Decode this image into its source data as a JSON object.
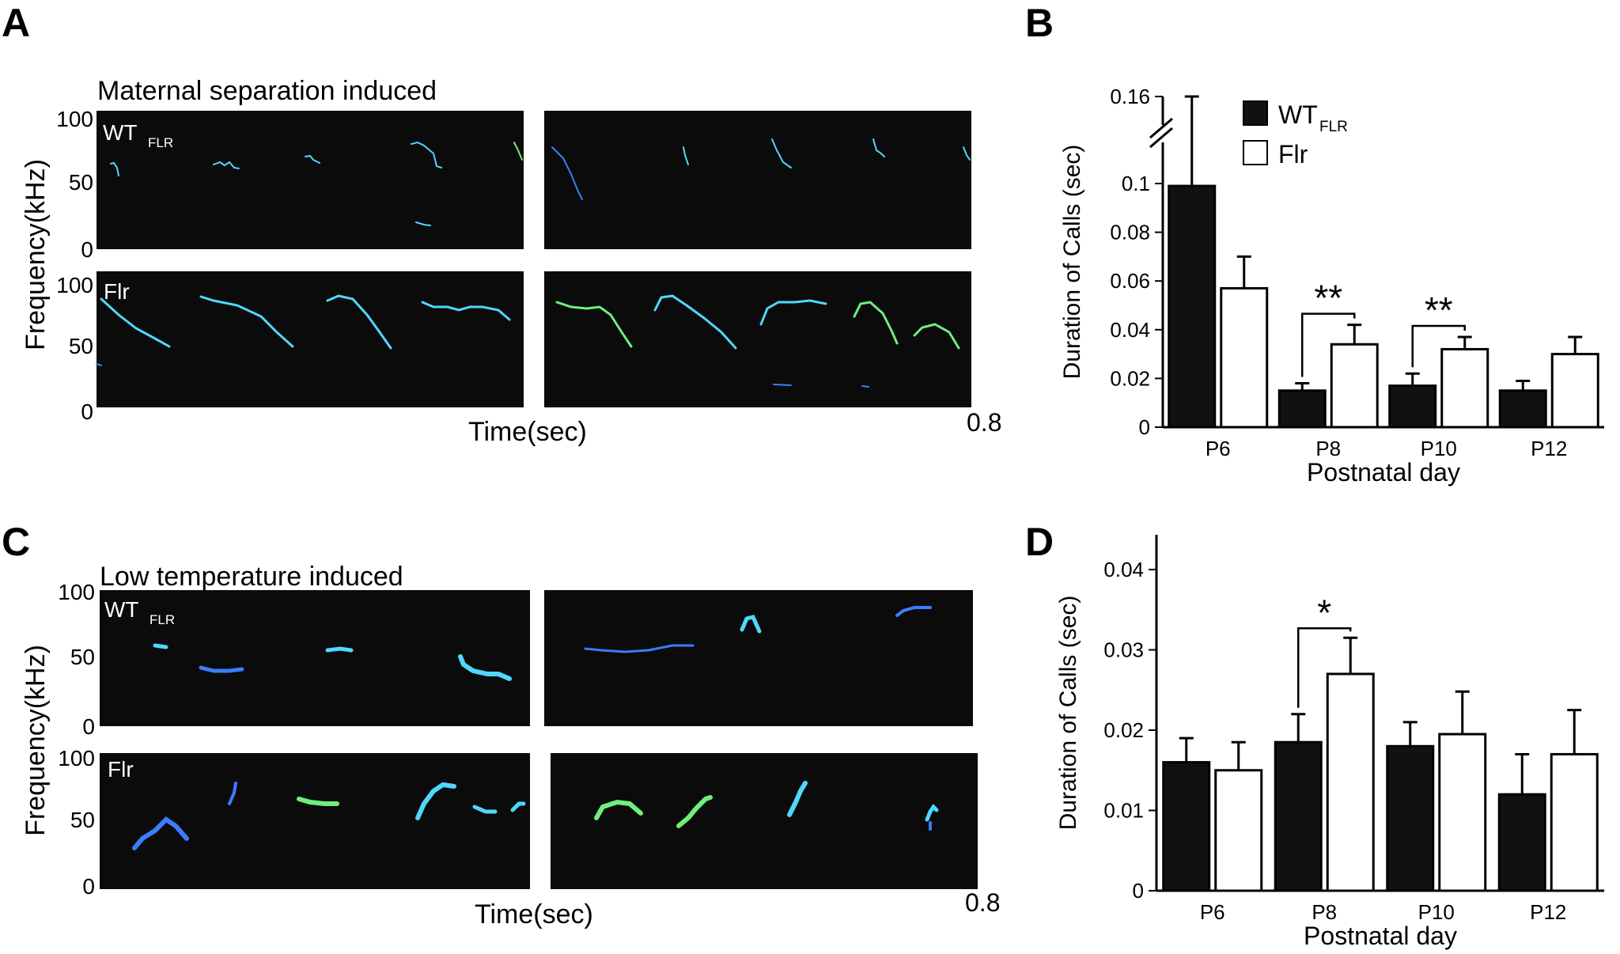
{
  "panels": {
    "A": {
      "letter": "A",
      "title": "Maternal separation induced",
      "ylabel": "Frequency(kHz)",
      "xlabel": "Time(sec)",
      "x_end_label": "0.8",
      "wt_label_main": "WT",
      "wt_label_sub": "FLR",
      "flr_label": "Flr",
      "yticks": [
        "100",
        "50",
        "0"
      ]
    },
    "C": {
      "letter": "C",
      "title": "Low temperature induced",
      "ylabel": "Frequency(kHz)",
      "xlabel": "Time(sec)",
      "x_end_label": "0.8",
      "wt_label_main": "WT",
      "wt_label_sub": "FLR",
      "flr_label": "Flr",
      "yticks": [
        "100",
        "50",
        "0"
      ]
    },
    "B": {
      "letter": "B"
    },
    "D": {
      "letter": "D"
    }
  },
  "colors": {
    "spectrogram_bg": "#0b0b0b",
    "trace_blue": "#3b7dff",
    "trace_cyan": "#4fd8ff",
    "trace_green": "#6ef07a",
    "wt_bar": "#111111",
    "flr_bar": "#ffffff"
  },
  "chart_data": [
    {
      "panel": "B",
      "type": "bar",
      "categories": [
        "P6",
        "P8",
        "P10",
        "P12"
      ],
      "series": [
        {
          "name": "WT",
          "name_sub": "FLR",
          "values": [
            0.099,
            0.015,
            0.017,
            0.015
          ],
          "errors": [
            0.061,
            0.003,
            0.005,
            0.004
          ]
        },
        {
          "name": "Flr",
          "values": [
            0.057,
            0.034,
            0.032,
            0.03
          ],
          "errors": [
            0.013,
            0.008,
            0.005,
            0.007
          ]
        }
      ],
      "xlabel": "Postnatal day",
      "ylabel": "Duration of Calls (sec)",
      "yticks": [
        "0",
        "0.02",
        "0.04",
        "0.06",
        "0.08",
        "0.1",
        "0.16"
      ],
      "ylim": [
        0,
        0.1
      ],
      "axis_break": true,
      "legend_position": "top-right",
      "significance": [
        {
          "category": "P8",
          "label": "**"
        },
        {
          "category": "P10",
          "label": "**"
        }
      ]
    },
    {
      "panel": "D",
      "type": "bar",
      "categories": [
        "P6",
        "P8",
        "P10",
        "P12"
      ],
      "series": [
        {
          "name": "WT",
          "values": [
            0.016,
            0.0185,
            0.018,
            0.012
          ],
          "errors": [
            0.003,
            0.0035,
            0.003,
            0.005
          ]
        },
        {
          "name": "Flr",
          "values": [
            0.015,
            0.027,
            0.0195,
            0.017
          ],
          "errors": [
            0.0035,
            0.0045,
            0.0053,
            0.0055
          ]
        }
      ],
      "xlabel": "Postnatal day",
      "ylabel": "Duration of Calls (sec)",
      "yticks": [
        "0",
        "0.01",
        "0.02",
        "0.03",
        "0.04"
      ],
      "ylim": [
        0,
        0.04
      ],
      "significance": [
        {
          "category": "P8",
          "label": "*"
        }
      ]
    }
  ]
}
